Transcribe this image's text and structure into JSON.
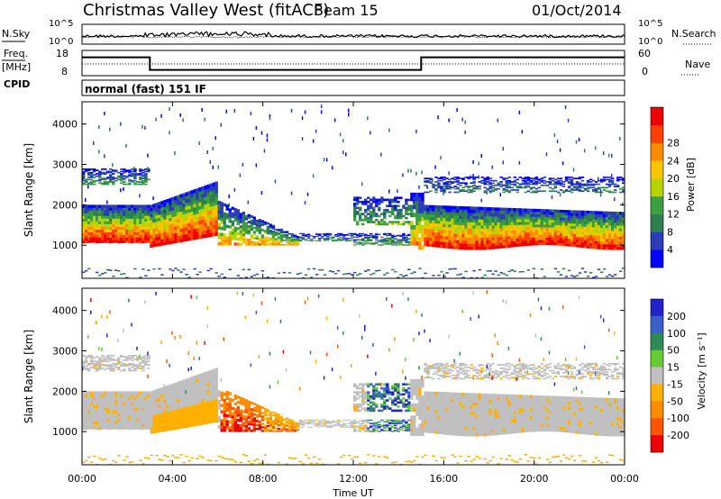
{
  "header": {
    "station": "Christmas Valley West (fitACF)",
    "beam": "Beam 15",
    "date": "01/Oct/2014"
  },
  "left_labels": {
    "nsky": "N.Sky",
    "freq_line1": "Freq.",
    "freq_line2": "[MHz]",
    "cpid": "CPID"
  },
  "right_labels": {
    "nsearch": "N.Search",
    "nave": "Nave"
  },
  "cpid_text": "normal (fast) 151 IF",
  "colors": {
    "power_scale": [
      "#0000ff",
      "#2a3cb8",
      "#2f7f4f",
      "#3aa040",
      "#b8d400",
      "#ffc400",
      "#ff8c00",
      "#ff4000",
      "#ee0000"
    ],
    "velocity_scale": [
      "#2222cc",
      "#3a5fcc",
      "#2e8b57",
      "#66cc33",
      "#c0c0c0",
      "#ffb000",
      "#ff8c00",
      "#ff5500",
      "#ee0000"
    ]
  },
  "chart_data": [
    {
      "type": "line",
      "name": "noise-panel",
      "yticks": [
        "10^5",
        "10^0"
      ],
      "right_yticks": [
        "10^5",
        "10^0"
      ],
      "series": [
        {
          "name": "N.Sky",
          "style": "solid",
          "level": 0.55
        },
        {
          "name": "N.Search",
          "style": "dotted",
          "level": 0.5
        }
      ]
    },
    {
      "type": "line",
      "name": "frequency-panel",
      "yticks": [
        "18",
        "8"
      ],
      "right_yticks": [
        "60",
        "0"
      ],
      "series": [
        {
          "name": "Freq.",
          "style": "solid",
          "x_hours": [
            0,
            3,
            3,
            15,
            15,
            24
          ],
          "y_mhz": [
            16,
            16,
            11,
            11,
            16,
            16
          ]
        },
        {
          "name": "Nave",
          "style": "dotted",
          "level_right": 18
        }
      ]
    },
    {
      "type": "heatmap",
      "name": "power-panel",
      "ylabel": "Slant Range [km]",
      "ylim": [
        180,
        4550
      ],
      "yticks": [
        1000,
        2000,
        3000,
        4000
      ],
      "xlim": [
        0,
        24
      ],
      "colorbar_label": "Power [dB]",
      "colorbar_ticks": [
        4,
        8,
        12,
        16,
        20,
        24,
        28
      ]
    },
    {
      "type": "heatmap",
      "name": "velocity-panel",
      "ylabel": "Slant Range [km]",
      "ylim": [
        180,
        4550
      ],
      "yticks": [
        1000,
        2000,
        3000,
        4000
      ],
      "xlim": [
        0,
        24
      ],
      "xlabel": "Time UT",
      "xticks": [
        "00:00",
        "04:00",
        "08:00",
        "12:00",
        "16:00",
        "20:00",
        "00:00"
      ],
      "colorbar_label": "Velocity [m s⁻¹]",
      "colorbar_ticks": [
        200,
        100,
        50,
        15,
        -15,
        -50,
        -100,
        -200
      ]
    }
  ]
}
